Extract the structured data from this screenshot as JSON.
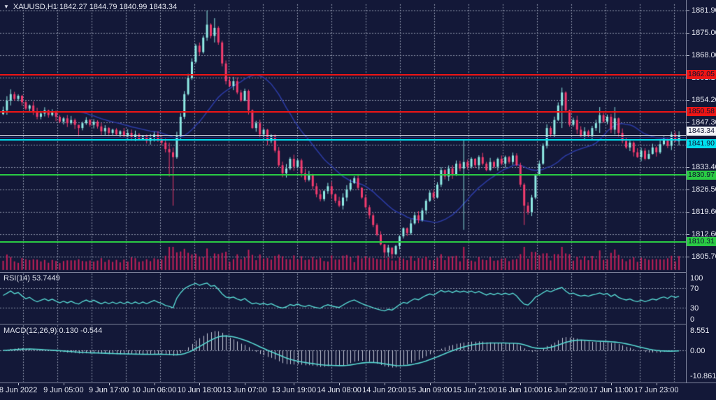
{
  "title": {
    "text": "XAUUSD,H1 1842.27 1844.79 1840.99 1843.34",
    "symbol": "XAUUSD",
    "timeframe": "H1",
    "ohlc": {
      "open": "1842.27",
      "high": "1844.79",
      "low": "1840.99",
      "close": "1843.34"
    }
  },
  "panels": {
    "rsi": {
      "label": "RSI(14) 53.7449",
      "value": "53.7449"
    },
    "macd": {
      "label": "MACD(12,26,9) 0.130 -0.544",
      "value": "0.130",
      "signal_value": "-0.544"
    }
  },
  "colors": {
    "background": "#131838",
    "grid": "#8f95ac",
    "bull": "#8feae4",
    "bear": "#f23c6e",
    "volume": "#c22058",
    "ma": "#2b3aa0",
    "level_navy": "#1d2c73",
    "rsi_line": "#57d8d2",
    "macd_signal": "#57d8d2",
    "macd_hist": "#c3c7d6",
    "axis_text": "#e9ebf4",
    "separator": "#80869e",
    "level_red": "#ee1515",
    "level_green": "#2acc44",
    "level_cyan": "#00dfee",
    "price_line": "#d4d7e0",
    "badge_text": "#0d1230",
    "white_badge": "#f2f3f7"
  },
  "chart_data": {
    "type": "candlestick",
    "symbol": "XAUUSD",
    "timeframe": "H1",
    "ylim": [
      1801.6,
      1883.4
    ],
    "grid": true,
    "first_open": 1849.8,
    "closes": [
      1851,
      1854,
      1856,
      1854.5,
      1855.5,
      1853.5,
      1851.5,
      1852.5,
      1850.5,
      1849,
      1850,
      1851,
      1849.5,
      1850.5,
      1849,
      1847.5,
      1848.5,
      1847,
      1848,
      1846.5,
      1845.5,
      1847,
      1848,
      1846.5,
      1847.5,
      1846,
      1844.5,
      1845.5,
      1844,
      1845,
      1843.5,
      1844.5,
      1843,
      1844,
      1842.5,
      1843.5,
      1842,
      1843,
      1841.5,
      1842.5,
      1843.5,
      1842,
      1841,
      1839,
      1838,
      1836.5,
      1843,
      1849,
      1856,
      1861,
      1866,
      1871,
      1869,
      1873.5,
      1877.5,
      1874,
      1876.5,
      1872,
      1865.5,
      1860,
      1858.5,
      1860,
      1856.5,
      1854,
      1857,
      1851,
      1845.5,
      1847,
      1843.5,
      1845,
      1841.5,
      1843,
      1838.5,
      1834,
      1831.5,
      1833,
      1836,
      1833.5,
      1835.5,
      1831.5,
      1829.5,
      1831,
      1827.5,
      1825,
      1823.5,
      1826,
      1827.5,
      1825,
      1823,
      1821.5,
      1824,
      1826.5,
      1828.5,
      1830,
      1827,
      1824,
      1821,
      1818.5,
      1815.5,
      1812.5,
      1809.5,
      1807,
      1808.5,
      1806.5,
      1809,
      1812,
      1814.5,
      1813,
      1816,
      1818.5,
      1817,
      1820,
      1823,
      1825.5,
      1824,
      1828,
      1832.5,
      1830.5,
      1833,
      1831,
      1834.5,
      1833,
      1835,
      1833.5,
      1836,
      1834,
      1836.5,
      1834.5,
      1832.5,
      1835,
      1833.5,
      1836,
      1834.5,
      1836.5,
      1835,
      1837,
      1834,
      1828,
      1821.5,
      1819.5,
      1824,
      1831,
      1834.5,
      1840,
      1845.5,
      1843.5,
      1848,
      1852.5,
      1856.5,
      1851,
      1846.5,
      1848,
      1845,
      1843,
      1844.5,
      1843,
      1845.5,
      1847,
      1849.5,
      1847.5,
      1849,
      1845,
      1848.5,
      1844,
      1841.5,
      1839.5,
      1841,
      1838,
      1836.5,
      1838.5,
      1836,
      1837.5,
      1839.5,
      1838,
      1840.5,
      1842,
      1840,
      1843.5,
      1841.5,
      1843.3
    ],
    "wick_overrides": {
      "2": [
        1857.5,
        1852.5
      ],
      "20": [
        1846.5,
        1843.0
      ],
      "44": [
        1841.0,
        1830.5
      ],
      "45": [
        1839.5,
        1821.5
      ],
      "54": [
        1881.9,
        1872.5
      ],
      "56": [
        1879.5,
        1872.0
      ],
      "101": [
        1809.6,
        1805.2
      ],
      "103": [
        1808.6,
        1805.0
      ],
      "122": [
        1842.0,
        1814.0
      ],
      "138": [
        1828.5,
        1815.5
      ],
      "148": [
        1858.0,
        1845.5
      ],
      "158": [
        1852.0,
        1844.0
      ],
      "162": [
        1852.0,
        1843.5
      ]
    },
    "indicators": {
      "sma_period": 21,
      "rsi_period": 14,
      "macd": [
        12,
        26,
        9
      ]
    },
    "hlines": [
      {
        "price": 1862.05,
        "color_key": "level_red",
        "width": 2,
        "badge": "1862.05",
        "badge_bg": "#ee1515"
      },
      {
        "price": 1850.58,
        "color_key": "level_red",
        "width": 2,
        "badge": "1850.58",
        "badge_bg": "#ee1515"
      },
      {
        "price": 1843.34,
        "color_key": "price_line",
        "width": 1,
        "badge": "1843.34",
        "badge_bg": "#f2f3f7"
      },
      {
        "price": 1842.6,
        "color_key": "level_navy",
        "width": 1,
        "badge": null,
        "badge_bg": null
      },
      {
        "price": 1841.9,
        "color_key": "level_cyan",
        "width": 2,
        "badge": "1841.90",
        "badge_bg": "#00dfee"
      },
      {
        "price": 1830.97,
        "color_key": "level_green",
        "width": 2,
        "badge": "1830.97",
        "badge_bg": "#2acc44"
      },
      {
        "price": 1810.31,
        "color_key": "level_green",
        "width": 2,
        "badge": "1810.31",
        "badge_bg": "#2acc44"
      }
    ],
    "y_ticks": [
      "1881.90",
      "1875.00",
      "1868.00",
      "1861.10",
      "1854.20",
      "1847.30",
      "1840.30",
      "1833.40",
      "1826.50",
      "1819.60",
      "1812.60",
      "1805.70"
    ],
    "x_labels": [
      {
        "text": "8 Jun 2022",
        "bar": 4
      },
      {
        "text": "9 Jun 05:00",
        "bar": 16
      },
      {
        "text": "9 Jun 17:00",
        "bar": 28
      },
      {
        "text": "10 Jun 06:00",
        "bar": 40
      },
      {
        "text": "10 Jun 18:00",
        "bar": 52
      },
      {
        "text": "13 Jun 07:00",
        "bar": 64
      },
      {
        "text": "13 Jun 19:00",
        "bar": 77
      },
      {
        "text": "14 Jun 08:00",
        "bar": 89
      },
      {
        "text": "14 Jun 20:00",
        "bar": 101
      },
      {
        "text": "15 Jun 09:00",
        "bar": 113
      },
      {
        "text": "15 Jun 21:00",
        "bar": 125
      },
      {
        "text": "16 Jun 10:00",
        "bar": 137
      },
      {
        "text": "16 Jun 22:00",
        "bar": 149
      },
      {
        "text": "17 Jun 11:00",
        "bar": 161
      },
      {
        "text": "17 Jun 23:00",
        "bar": 173
      }
    ],
    "rsi_scale": [
      {
        "v": 100,
        "t": "100"
      },
      {
        "v": 70,
        "t": "70"
      },
      {
        "v": 30,
        "t": "30"
      },
      {
        "v": 0,
        "t": "0"
      }
    ],
    "rsi_levels": [
      70,
      30
    ],
    "macd_scale": [
      {
        "v": 8.551,
        "t": "8.551"
      },
      {
        "v": 0,
        "t": "0.00"
      },
      {
        "v": -10.861,
        "t": "-10.861"
      }
    ]
  }
}
